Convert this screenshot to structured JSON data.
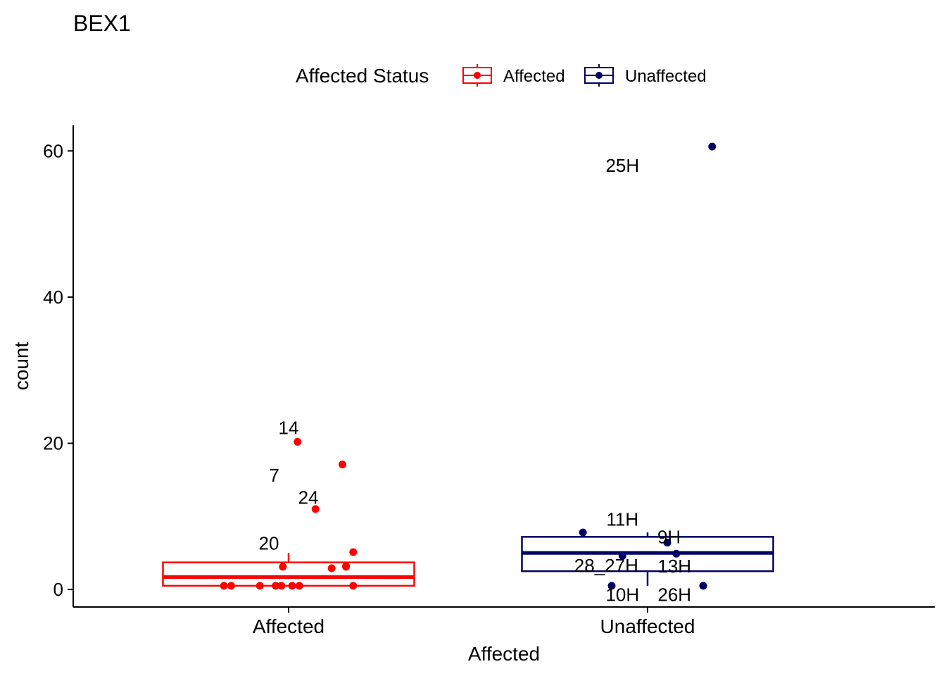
{
  "chart_data": {
    "type": "box",
    "title": "BEX1",
    "xlabel": "Affected",
    "ylabel": "count",
    "ylim": [
      -2.4,
      63.5
    ],
    "yticks": [
      0,
      20,
      40,
      60
    ],
    "categories": [
      "Affected",
      "Unaffected"
    ],
    "grid": false,
    "legend": {
      "title": "Affected Status",
      "position": "top",
      "entries": [
        "Affected",
        "Unaffected"
      ]
    },
    "colors": {
      "Affected": "#ff0000",
      "Unaffected": "#000066"
    },
    "boxes": [
      {
        "group": "Affected",
        "whisker_low": 0.5,
        "q1": 0.5,
        "median": 1.7,
        "q3": 3.7,
        "whisker_high": 5.0
      },
      {
        "group": "Unaffected",
        "whisker_low": 0.5,
        "q1": 2.5,
        "median": 5.0,
        "q3": 7.2,
        "whisker_high": 7.8
      }
    ],
    "series": [
      {
        "name": "Affected",
        "points": [
          {
            "x": -0.18,
            "y": 0.5
          },
          {
            "x": -0.16,
            "y": 0.5
          },
          {
            "x": -0.08,
            "y": 0.5
          },
          {
            "x": -0.036,
            "y": 0.5
          },
          {
            "x": -0.02,
            "y": 0.5
          },
          {
            "x": 0.01,
            "y": 0.5
          },
          {
            "x": 0.03,
            "y": 0.5
          },
          {
            "x": 0.18,
            "y": 0.5
          },
          {
            "x": -0.016,
            "y": 3.1
          },
          {
            "x": 0.12,
            "y": 2.9
          },
          {
            "x": 0.16,
            "y": 3.1
          },
          {
            "x": 0.16,
            "y": 3.2
          },
          {
            "x": 0.18,
            "y": 5.1
          },
          {
            "x": 0.075,
            "y": 11.0
          },
          {
            "x": 0.15,
            "y": 17.1
          },
          {
            "x": 0.025,
            "y": 20.2
          }
        ]
      },
      {
        "name": "Unaffected",
        "points": [
          {
            "x": -0.18,
            "y": 7.8
          },
          {
            "x": -0.1,
            "y": 0.5
          },
          {
            "x": -0.07,
            "y": 4.6
          },
          {
            "x": 0.055,
            "y": 6.4
          },
          {
            "x": 0.08,
            "y": 4.9
          },
          {
            "x": 0.155,
            "y": 0.5
          },
          {
            "x": 0.18,
            "y": 60.6
          }
        ]
      }
    ],
    "annotations": [
      {
        "text": "14",
        "group": "Affected",
        "dx": 0.0,
        "y": 22.1
      },
      {
        "text": "7",
        "group": "Affected",
        "dx": -0.04,
        "y": 15.6
      },
      {
        "text": "24",
        "group": "Affected",
        "dx": 0.055,
        "y": 12.6
      },
      {
        "text": "20",
        "group": "Affected",
        "dx": -0.055,
        "y": 6.3
      },
      {
        "text": "25H",
        "group": "Unaffected",
        "dx": -0.07,
        "y": 58.0
      },
      {
        "text": "11H",
        "group": "Unaffected",
        "dx": -0.07,
        "y": 9.6
      },
      {
        "text": "9H",
        "group": "Unaffected",
        "dx": 0.06,
        "y": 7.2
      },
      {
        "text": "28_27H",
        "group": "Unaffected",
        "dx": -0.115,
        "y": 3.3
      },
      {
        "text": "13H",
        "group": "Unaffected",
        "dx": 0.075,
        "y": 3.2
      },
      {
        "text": "10H",
        "group": "Unaffected",
        "dx": -0.07,
        "y": -0.7
      },
      {
        "text": "26H",
        "group": "Unaffected",
        "dx": 0.075,
        "y": -0.7
      }
    ]
  }
}
